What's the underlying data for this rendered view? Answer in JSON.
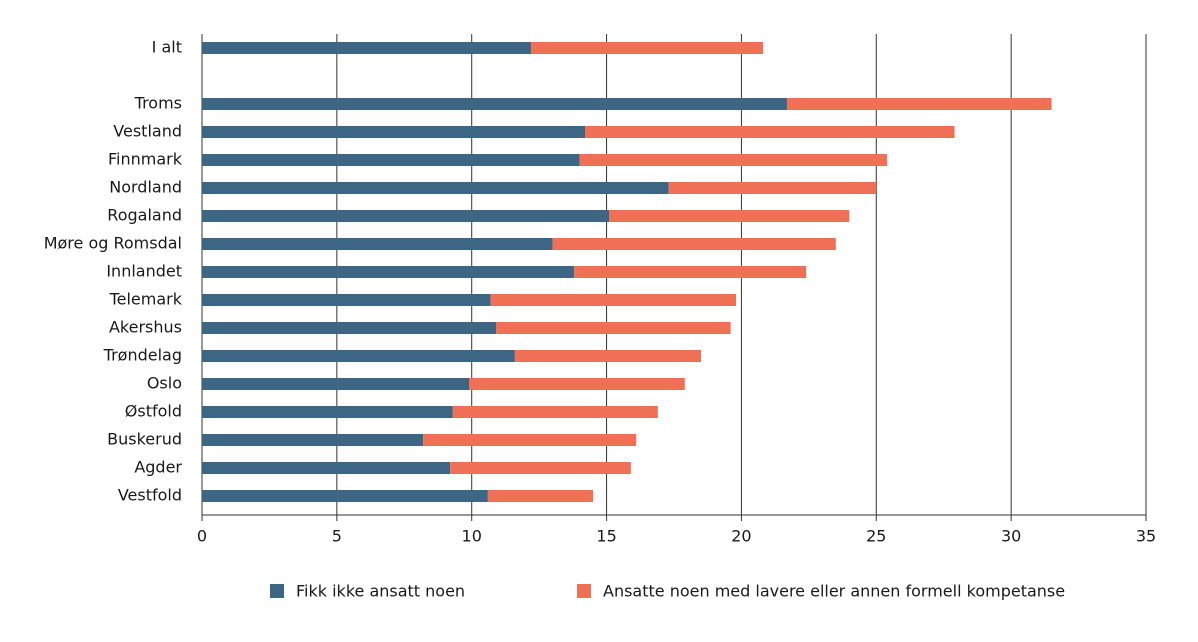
{
  "chart_data": {
    "type": "stacked-barh",
    "categories": [
      "I alt",
      null,
      "Troms",
      "Vestland",
      "Finnmark",
      "Nordland",
      "Rogaland",
      "Møre og Romsdal",
      "Innlandet",
      "Telemark",
      "Akershus",
      "Trøndelag",
      "Oslo",
      "Østfold",
      "Buskerud",
      "Agder",
      "Vestfold"
    ],
    "series": [
      {
        "name": "Fikk ikke ansatt noen",
        "color": "#3d6584",
        "values": [
          12.2,
          null,
          21.7,
          14.2,
          14.0,
          17.3,
          15.1,
          13.0,
          13.8,
          10.7,
          10.9,
          11.6,
          9.9,
          9.3,
          8.2,
          9.2,
          10.6
        ]
      },
      {
        "name": "Ansatte noen med lavere eller annen formell kompetanse",
        "color": "#ef7055",
        "values": [
          8.6,
          null,
          9.8,
          13.7,
          11.4,
          7.7,
          8.9,
          10.5,
          8.6,
          9.1,
          8.7,
          6.9,
          8.0,
          7.6,
          7.9,
          6.7,
          3.9
        ]
      }
    ],
    "xlim": [
      0,
      35
    ],
    "xticks": [
      0,
      5,
      10,
      15,
      20,
      25,
      30,
      35
    ],
    "grid": true
  }
}
